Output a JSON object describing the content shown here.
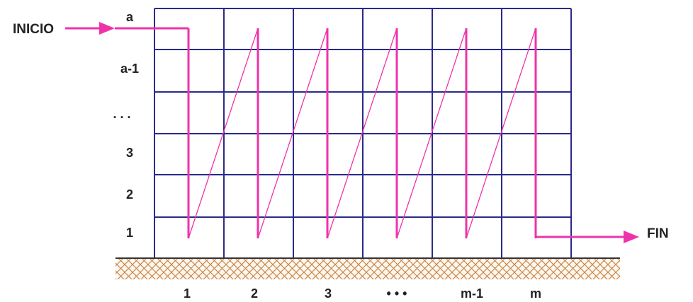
{
  "labels": {
    "start": "INICIO",
    "end": "FIN"
  },
  "row_labels": [
    "a",
    "a-1",
    ". . .",
    "3",
    "2",
    "1"
  ],
  "column_labels": [
    "1",
    "2",
    "3",
    "• • •",
    "m-1",
    "m"
  ],
  "colors": {
    "grid": "#2a2a8a",
    "path": "#ee33aa",
    "hatch": "#c8864a",
    "ground": "#333333",
    "text": "#222222"
  }
}
